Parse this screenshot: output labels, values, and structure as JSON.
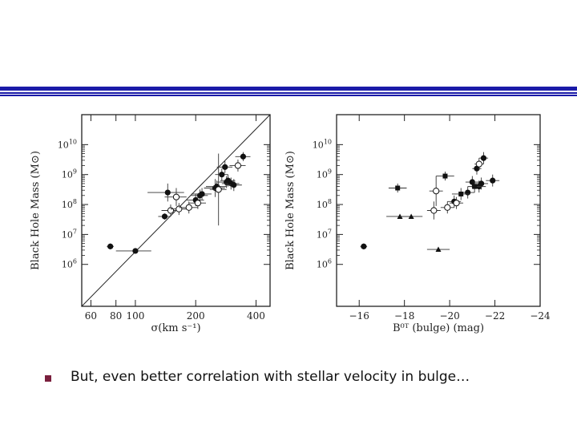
{
  "colors": {
    "title_bar_blue": "#1a1aa8",
    "bullet": "#7a1f3d",
    "ink": "#111111"
  },
  "bullet": {
    "text": "But, even better correlation with stellar velocity in bulge…"
  },
  "chart_data": [
    {
      "type": "scatter",
      "title": "",
      "xlabel": "σ(km s⁻¹)",
      "ylabel": "Black Hole Mass (M⊙)",
      "x_scale": "log",
      "y_scale": "log",
      "xlim": [
        54,
        470
      ],
      "ylim": [
        4.6,
        11.0
      ],
      "xticks": [
        60,
        80,
        100,
        200,
        400
      ],
      "xtick_labels": [
        "60",
        "80",
        "100",
        "200",
        "400"
      ],
      "yticks": [
        6,
        7,
        8,
        9,
        10
      ],
      "ytick_labels": [
        "10⁶",
        "10⁷",
        "10⁸",
        "10⁹",
        "10¹⁰"
      ],
      "fit_line": {
        "x": [
          54,
          470
        ],
        "y": [
          4.6,
          11.0
        ]
      },
      "series": [
        {
          "marker": "filled-circle",
          "points": [
            {
              "x": 75,
              "y": 6.6,
              "xerr": 3,
              "yerr": 0.1
            },
            {
              "x": 100,
              "y": 6.45,
              "xerr": 20,
              "yerr": 0.05
            },
            {
              "x": 140,
              "y": 7.6,
              "xerr": 10,
              "yerr": 0.1
            },
            {
              "x": 145,
              "y": 8.4,
              "xerr": 30,
              "yerr": 0.3
            },
            {
              "x": 200,
              "y": 8.15,
              "xerr": 20,
              "yerr": 0.2
            },
            {
              "x": 210,
              "y": 8.3,
              "xerr": 20,
              "yerr": 0.2
            },
            {
              "x": 215,
              "y": 8.35,
              "xerr": 25,
              "yerr": 0.2
            },
            {
              "x": 250,
              "y": 8.55,
              "xerr": 30,
              "yerr": 0.3
            },
            {
              "x": 255,
              "y": 8.6,
              "xerr": 30,
              "yerr": 0.2
            },
            {
              "x": 270,
              "y": 9.0,
              "xerr": 20,
              "yerr": 0.2
            },
            {
              "x": 280,
              "y": 9.25,
              "xerr": 25,
              "yerr": 0.2
            },
            {
              "x": 285,
              "y": 8.75,
              "xerr": 30,
              "yerr": 0.2
            },
            {
              "x": 290,
              "y": 8.8,
              "xerr": 25,
              "yerr": 0.2
            },
            {
              "x": 300,
              "y": 8.7,
              "xerr": 30,
              "yerr": 0.2
            },
            {
              "x": 310,
              "y": 8.65,
              "xerr": 30,
              "yerr": 0.2
            },
            {
              "x": 345,
              "y": 9.6,
              "xerr": 30,
              "yerr": 0.15
            }
          ]
        },
        {
          "marker": "open-circle",
          "points": [
            {
              "x": 150,
              "y": 7.8,
              "xerr": 15,
              "yerr": 0.2
            },
            {
              "x": 165,
              "y": 7.85,
              "xerr": 15,
              "yerr": 0.2
            },
            {
              "x": 160,
              "y": 8.25,
              "xerr": 20,
              "yerr": 0.3
            },
            {
              "x": 185,
              "y": 7.9,
              "xerr": 20,
              "yerr": 0.2
            },
            {
              "x": 205,
              "y": 8.05,
              "xerr": 20,
              "yerr": 0.2
            },
            {
              "x": 260,
              "y": 8.5,
              "xerr": 25,
              "yerr": 1.2
            },
            {
              "x": 325,
              "y": 9.3,
              "xerr": 30,
              "yerr": 0.2
            }
          ]
        }
      ]
    },
    {
      "type": "scatter",
      "title": "",
      "xlabel": "B⁰ᵀ (bulge) (mag)",
      "ylabel": "Black Hole Mass (M⊙)",
      "y_scale": "log",
      "xlim": [
        -15.0,
        -24.0
      ],
      "ylim": [
        4.6,
        11.0
      ],
      "xticks": [
        -16,
        -18,
        -20,
        -22,
        -24
      ],
      "xtick_labels": [
        "−16",
        "−18",
        "−20",
        "−22",
        "−24"
      ],
      "yticks": [
        6,
        7,
        8,
        9,
        10
      ],
      "ytick_labels": [
        "10⁶",
        "10⁷",
        "10⁸",
        "10⁹",
        "10¹⁰"
      ],
      "series": [
        {
          "marker": "filled-circle",
          "points": [
            {
              "x": -16.2,
              "y": 6.6,
              "xerr": 0.15,
              "yerr": 0.1
            },
            {
              "x": -20.2,
              "y": 8.1,
              "xerr": 0.3,
              "yerr": 0.2
            },
            {
              "x": -20.8,
              "y": 8.4,
              "xerr": 0.3,
              "yerr": 0.2
            },
            {
              "x": -21.0,
              "y": 8.75,
              "xerr": 0.3,
              "yerr": 0.2
            },
            {
              "x": -21.2,
              "y": 9.2,
              "xerr": 0.2,
              "yerr": 0.2
            },
            {
              "x": -21.3,
              "y": 8.6,
              "xerr": 0.3,
              "yerr": 0.2
            },
            {
              "x": -21.4,
              "y": 8.7,
              "xerr": 0.3,
              "yerr": 0.2
            },
            {
              "x": -21.5,
              "y": 9.55,
              "xerr": 0.2,
              "yerr": 0.2
            },
            {
              "x": -21.9,
              "y": 8.8,
              "xerr": 0.3,
              "yerr": 0.2
            }
          ]
        },
        {
          "marker": "open-circle",
          "points": [
            {
              "x": -19.3,
              "y": 7.8,
              "xerr": 0.3,
              "yerr": 0.3
            },
            {
              "x": -19.4,
              "y": 8.45,
              "xerr": 0.3,
              "yerr": 0.5
            },
            {
              "x": -19.9,
              "y": 7.9,
              "xerr": 0.3,
              "yerr": 0.2
            },
            {
              "x": -20.3,
              "y": 8.05,
              "xerr": 0.3,
              "yerr": 0.2
            },
            {
              "x": -21.3,
              "y": 9.35,
              "xerr": 0.2,
              "yerr": 0.2
            }
          ]
        },
        {
          "marker": "filled-square",
          "points": [
            {
              "x": -17.7,
              "y": 8.55,
              "xerr": 0.4,
              "yerr": 0.15
            },
            {
              "x": -19.8,
              "y": 8.95,
              "xerr": 0.4,
              "yerr": 0.15
            },
            {
              "x": -20.5,
              "y": 8.35,
              "xerr": 0.4,
              "yerr": 0.2
            },
            {
              "x": -21.1,
              "y": 8.6,
              "xerr": 0.3,
              "yerr": 0.2
            }
          ]
        },
        {
          "marker": "filled-triangle",
          "points": [
            {
              "x": -17.8,
              "y": 7.6,
              "xerr": 0.6,
              "yerr": 0.05
            },
            {
              "x": -18.3,
              "y": 7.6,
              "xerr": 0.5,
              "yerr": 0.05
            },
            {
              "x": -19.5,
              "y": 6.5,
              "xerr": 0.5,
              "yerr": 0.05
            }
          ]
        }
      ]
    }
  ]
}
